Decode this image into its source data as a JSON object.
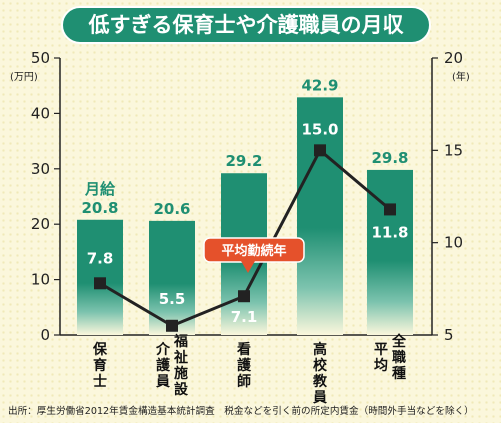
{
  "chart_data": {
    "type": "bar+line",
    "title": "低すぎる保育士や介護職員の月収",
    "categories": [
      [
        "保育士"
      ],
      [
        "介護員",
        "福祉施設"
      ],
      [
        "看護師"
      ],
      [
        "高校教員"
      ],
      [
        "平均",
        "全職種"
      ]
    ],
    "bars": {
      "name": "月給",
      "values": [
        20.8,
        20.6,
        29.2,
        42.9,
        29.8
      ],
      "labels": [
        "20.8",
        "20.6",
        "29.2",
        "42.9",
        "29.8"
      ],
      "color": "#1f8f72"
    },
    "line": {
      "name": "平均勤続年",
      "values": [
        7.8,
        5.5,
        7.1,
        15.0,
        11.8
      ],
      "labels": [
        "7.8",
        "5.5",
        "7.1",
        "15.0",
        "11.8"
      ],
      "color": "#222222"
    },
    "y_left": {
      "unit": "(万円)",
      "min": 0,
      "max": 50,
      "ticks": [
        0,
        10,
        20,
        30,
        40,
        50
      ]
    },
    "y_right": {
      "unit": "(年)",
      "min": 5,
      "max": 20,
      "ticks": [
        5,
        10,
        15,
        20
      ]
    },
    "source": "出所：厚生労働省2012年賃金構造基本統計調査　税金などを引く前の所定内賃金（時間外手当などを除く）",
    "colors": {
      "title_bg": "#1f8f72",
      "badge_bg": "#e5512b",
      "background": "#fbf7dc"
    }
  }
}
